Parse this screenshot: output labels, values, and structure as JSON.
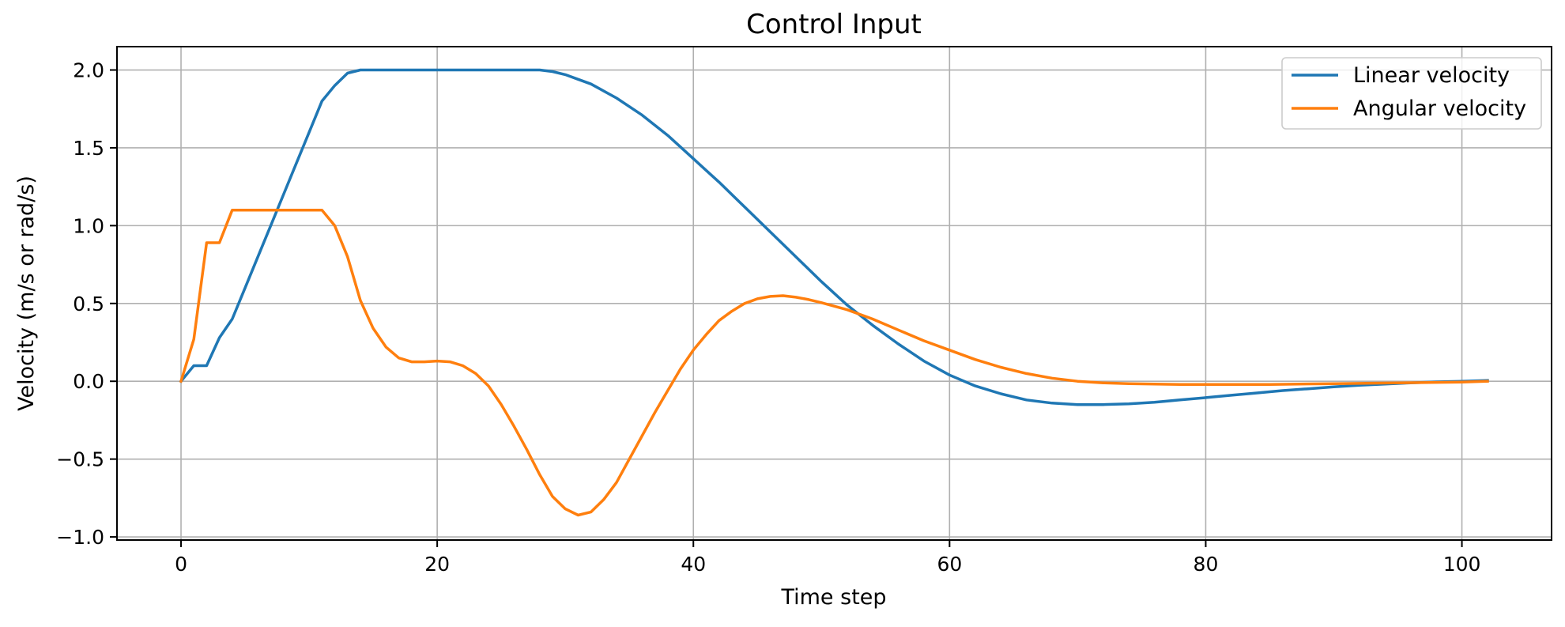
{
  "chart_data": {
    "type": "line",
    "title": "Control Input",
    "xlabel": "Time step",
    "ylabel": "Velocity (m/s or rad/s)",
    "xlim": [
      -5,
      107
    ],
    "ylim": [
      -1.02,
      2.15
    ],
    "xticks": [
      0,
      20,
      40,
      60,
      80,
      100
    ],
    "xtick_labels": [
      "0",
      "20",
      "40",
      "60",
      "80",
      "100"
    ],
    "yticks": [
      -1.0,
      -0.5,
      0.0,
      0.5,
      1.0,
      1.5,
      2.0
    ],
    "ytick_labels": [
      "−1.0",
      "−0.5",
      "0.0",
      "0.5",
      "1.0",
      "1.5",
      "2.0"
    ],
    "grid": true,
    "legend_position": "top-right",
    "series": [
      {
        "name": "Linear velocity",
        "color": "#1f77b4",
        "x": [
          0,
          1,
          2,
          3,
          4,
          5,
          6,
          7,
          8,
          9,
          10,
          11,
          12,
          13,
          14,
          15,
          16,
          18,
          20,
          22,
          24,
          26,
          28,
          29,
          30,
          31,
          32,
          34,
          36,
          38,
          40,
          42,
          44,
          46,
          48,
          50,
          52,
          54,
          56,
          58,
          60,
          62,
          64,
          66,
          68,
          70,
          72,
          74,
          76,
          78,
          80,
          82,
          84,
          86,
          88,
          90,
          92,
          94,
          96,
          98,
          100,
          102
        ],
        "y": [
          0,
          0.1,
          0.1,
          0.28,
          0.4,
          0.6,
          0.8,
          1.0,
          1.2,
          1.4,
          1.6,
          1.8,
          1.9,
          1.98,
          2.0,
          2.0,
          2.0,
          2.0,
          2.0,
          2.0,
          2.0,
          2.0,
          2.0,
          1.99,
          1.97,
          1.94,
          1.91,
          1.82,
          1.71,
          1.58,
          1.43,
          1.28,
          1.12,
          0.96,
          0.8,
          0.64,
          0.49,
          0.36,
          0.24,
          0.13,
          0.04,
          -0.03,
          -0.08,
          -0.12,
          -0.14,
          -0.15,
          -0.15,
          -0.145,
          -0.135,
          -0.12,
          -0.105,
          -0.09,
          -0.075,
          -0.06,
          -0.048,
          -0.036,
          -0.026,
          -0.018,
          -0.01,
          -0.004,
          0.0,
          0.005
        ]
      },
      {
        "name": "Angular velocity",
        "color": "#ff7f0e",
        "x": [
          0,
          1,
          2,
          3,
          4,
          5,
          6,
          7,
          8,
          9,
          10,
          11,
          12,
          13,
          14,
          15,
          16,
          17,
          18,
          19,
          20,
          21,
          22,
          23,
          24,
          25,
          26,
          27,
          28,
          29,
          30,
          31,
          32,
          33,
          34,
          35,
          36,
          37,
          38,
          39,
          40,
          41,
          42,
          43,
          44,
          45,
          46,
          47,
          48,
          49,
          50,
          52,
          54,
          56,
          58,
          60,
          62,
          64,
          66,
          68,
          70,
          72,
          74,
          76,
          78,
          80,
          85,
          90,
          95,
          100,
          102
        ],
        "y": [
          0,
          0.27,
          0.89,
          0.89,
          1.1,
          1.1,
          1.1,
          1.1,
          1.1,
          1.1,
          1.1,
          1.1,
          1.0,
          0.8,
          0.52,
          0.34,
          0.22,
          0.15,
          0.125,
          0.125,
          0.13,
          0.125,
          0.1,
          0.05,
          -0.03,
          -0.15,
          -0.29,
          -0.44,
          -0.6,
          -0.74,
          -0.82,
          -0.86,
          -0.84,
          -0.76,
          -0.65,
          -0.5,
          -0.35,
          -0.2,
          -0.06,
          0.08,
          0.2,
          0.3,
          0.39,
          0.45,
          0.5,
          0.53,
          0.545,
          0.55,
          0.54,
          0.525,
          0.505,
          0.46,
          0.4,
          0.33,
          0.26,
          0.2,
          0.14,
          0.09,
          0.05,
          0.02,
          0.0,
          -0.01,
          -0.015,
          -0.018,
          -0.02,
          -0.02,
          -0.02,
          -0.015,
          -0.01,
          -0.005,
          0.0
        ]
      }
    ]
  }
}
